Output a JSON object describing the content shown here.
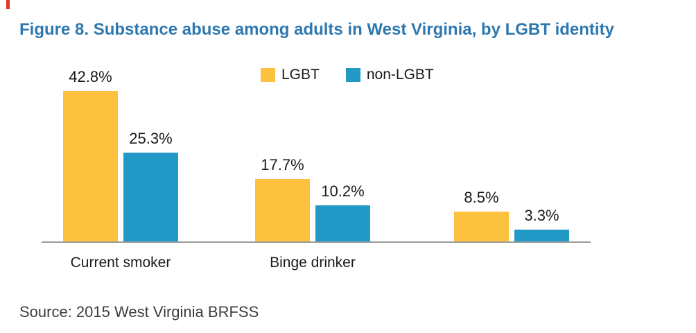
{
  "title": {
    "text": "Figure 8. Substance abuse among adults in West Virginia, by LGBT identity",
    "color": "#2E78B0"
  },
  "chart_data": {
    "type": "bar",
    "title": "Figure 8. Substance abuse among adults in West Virginia, by LGBT identity",
    "categories": [
      "Current smoker",
      "Binge drinker",
      ""
    ],
    "series": [
      {
        "name": "LGBT",
        "color": "#FDC140",
        "values": [
          42.8,
          17.7,
          8.5
        ]
      },
      {
        "name": "non-LGBT",
        "color": "#2399C8",
        "values": [
          25.3,
          10.2,
          3.3
        ]
      }
    ],
    "value_suffix": "%",
    "xlabel": "",
    "ylabel": "",
    "ylim": [
      0,
      45
    ],
    "grid": false,
    "legend_position": "top-center",
    "data_labels": [
      "42.8%",
      "25.3%",
      "17.7%",
      "10.2%",
      "8.5%",
      "3.3%"
    ]
  },
  "source": {
    "text": "Source: 2015 West Virginia BRFSS"
  },
  "colors": {
    "axis_line": "#9B9B9B",
    "label_text": "#1B1B1B",
    "red_mark": "#E3342B",
    "background": "#FFFFFF"
  }
}
